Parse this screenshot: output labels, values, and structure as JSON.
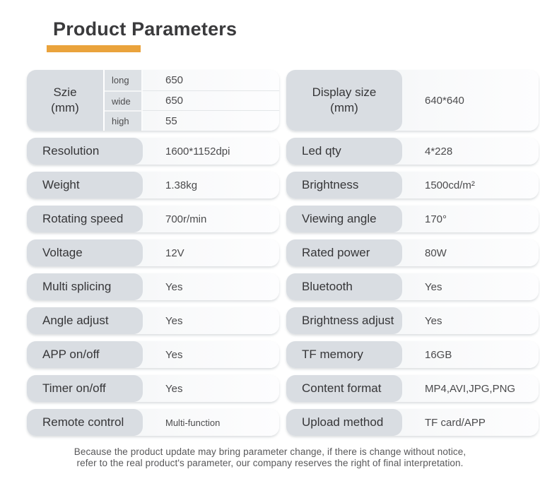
{
  "title": "Product Parameters",
  "accent_color": "#EAA33C",
  "columns": {
    "left": {
      "size_row": {
        "label": "Szie",
        "label_unit": "(mm)",
        "dims": [
          {
            "key": "long",
            "value": "650"
          },
          {
            "key": "wide",
            "value": "650"
          },
          {
            "key": "high",
            "value": "55"
          }
        ]
      },
      "rows": [
        {
          "label": "Resolution",
          "value": "1600*1152dpi"
        },
        {
          "label": "Weight",
          "value": "1.38kg"
        },
        {
          "label": "Rotating speed",
          "value": "700r/min"
        },
        {
          "label": "Voltage",
          "value": "12V"
        },
        {
          "label": "Multi splicing",
          "value": "Yes"
        },
        {
          "label": "Angle adjust",
          "value": "Yes"
        },
        {
          "label": "APP on/off",
          "value": "Yes"
        },
        {
          "label": "Timer on/off",
          "value": "Yes"
        },
        {
          "label": "Remote control",
          "value": "Multi-function",
          "small_value": true
        }
      ]
    },
    "right": {
      "size_row": {
        "label": "Display size",
        "label_unit": "(mm)",
        "value": "640*640"
      },
      "rows": [
        {
          "label": "Led qty",
          "value": "4*228"
        },
        {
          "label": "Brightness",
          "value": "1500cd/m²"
        },
        {
          "label": "Viewing angle",
          "value": "170°"
        },
        {
          "label": "Rated power",
          "value": "80W"
        },
        {
          "label": "Bluetooth",
          "value": "Yes"
        },
        {
          "label": "Brightness adjust",
          "value": "Yes"
        },
        {
          "label": "TF memory",
          "value": "16GB"
        },
        {
          "label": "Content format",
          "value": "MP4,AVI,JPG,PNG"
        },
        {
          "label": "Upload method",
          "value": "TF card/APP"
        }
      ]
    }
  },
  "footer": {
    "line1": "Because the product update may bring parameter change, if there is change without notice,",
    "line2": "refer to the real product's parameter, our company reserves the right of final interpretation."
  }
}
